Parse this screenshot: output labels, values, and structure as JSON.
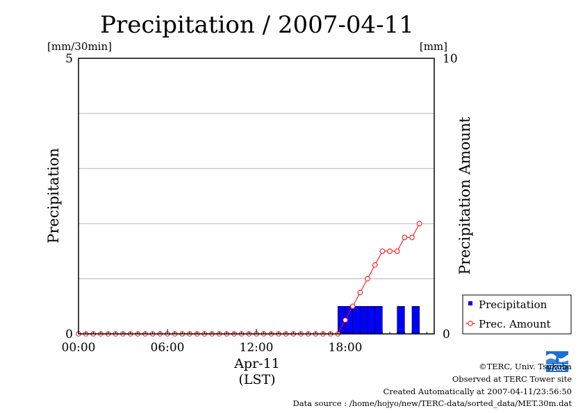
{
  "chart_data": {
    "type": "bar",
    "title": "Precipitation / 2007-04-11",
    "ylabel_left": "Precipitation",
    "ylabel_right": "Precipitation Amount",
    "unit_left": "[mm/30min]",
    "unit_right": "[mm]",
    "xlabel_date": "Apr-11",
    "xlabel_tz": "(LST)",
    "ylim_left": [
      0,
      5
    ],
    "ylim_right": [
      0,
      10
    ],
    "yticks_left": [
      "5",
      "0"
    ],
    "yticks_right": [
      "10",
      "0"
    ],
    "xticks": [
      "00:00",
      "06:00",
      "12:00",
      "18:00"
    ],
    "grid": true,
    "legend_placement": "bottom-right",
    "series": [
      {
        "name": "Precipitation",
        "axis": "left",
        "mark": "bar",
        "color": "#0000ff",
        "x": [
          "00:00",
          "00:30",
          "01:00",
          "01:30",
          "02:00",
          "02:30",
          "03:00",
          "03:30",
          "04:00",
          "04:30",
          "05:00",
          "05:30",
          "06:00",
          "06:30",
          "07:00",
          "07:30",
          "08:00",
          "08:30",
          "09:00",
          "09:30",
          "10:00",
          "10:30",
          "11:00",
          "11:30",
          "12:00",
          "12:30",
          "13:00",
          "13:30",
          "14:00",
          "14:30",
          "15:00",
          "15:30",
          "16:00",
          "16:30",
          "17:00",
          "17:30",
          "18:00",
          "18:30",
          "19:00",
          "19:30",
          "20:00",
          "20:30",
          "21:00",
          "21:30",
          "22:00",
          "22:30",
          "23:00",
          "23:30"
        ],
        "values": [
          0,
          0,
          0,
          0,
          0,
          0,
          0,
          0,
          0,
          0,
          0,
          0,
          0,
          0,
          0,
          0,
          0,
          0,
          0,
          0,
          0,
          0,
          0,
          0,
          0,
          0,
          0,
          0,
          0,
          0,
          0,
          0,
          0,
          0,
          0,
          0.5,
          0.5,
          0.5,
          0.5,
          0.5,
          0.5,
          0,
          0,
          0.5,
          0,
          0.5,
          0,
          0
        ]
      },
      {
        "name": "Prec. Amount",
        "axis": "right",
        "mark": "line-circle",
        "color": "#ff0000",
        "x": [
          "00:00",
          "00:30",
          "01:00",
          "01:30",
          "02:00",
          "02:30",
          "03:00",
          "03:30",
          "04:00",
          "04:30",
          "05:00",
          "05:30",
          "06:00",
          "06:30",
          "07:00",
          "07:30",
          "08:00",
          "08:30",
          "09:00",
          "09:30",
          "10:00",
          "10:30",
          "11:00",
          "11:30",
          "12:00",
          "12:30",
          "13:00",
          "13:30",
          "14:00",
          "14:30",
          "15:00",
          "15:30",
          "16:00",
          "16:30",
          "17:00",
          "17:30",
          "18:00",
          "18:30",
          "19:00",
          "19:30",
          "20:00",
          "20:30",
          "21:00",
          "21:30",
          "22:00",
          "22:30",
          "23:00"
        ],
        "values": [
          0,
          0,
          0,
          0,
          0,
          0,
          0,
          0,
          0,
          0,
          0,
          0,
          0,
          0,
          0,
          0,
          0,
          0,
          0,
          0,
          0,
          0,
          0,
          0,
          0,
          0,
          0,
          0,
          0,
          0,
          0,
          0,
          0,
          0,
          0,
          0,
          0.5,
          1.0,
          1.5,
          2.0,
          2.5,
          3.0,
          3.0,
          3.0,
          3.5,
          3.5,
          4.0
        ]
      }
    ]
  },
  "credits": {
    "copyright": "©TERC, Univ. Tsukuba",
    "observed": "Observed at TERC Tower site",
    "created": "Created Automatically at 2007-04-11/23:56:50",
    "source": "Data source : /home/hojyo/new/TERC-data/sorted_data/MET.30m.dat"
  },
  "logo": {
    "text": "TERC",
    "color": "#1a6fd0"
  }
}
